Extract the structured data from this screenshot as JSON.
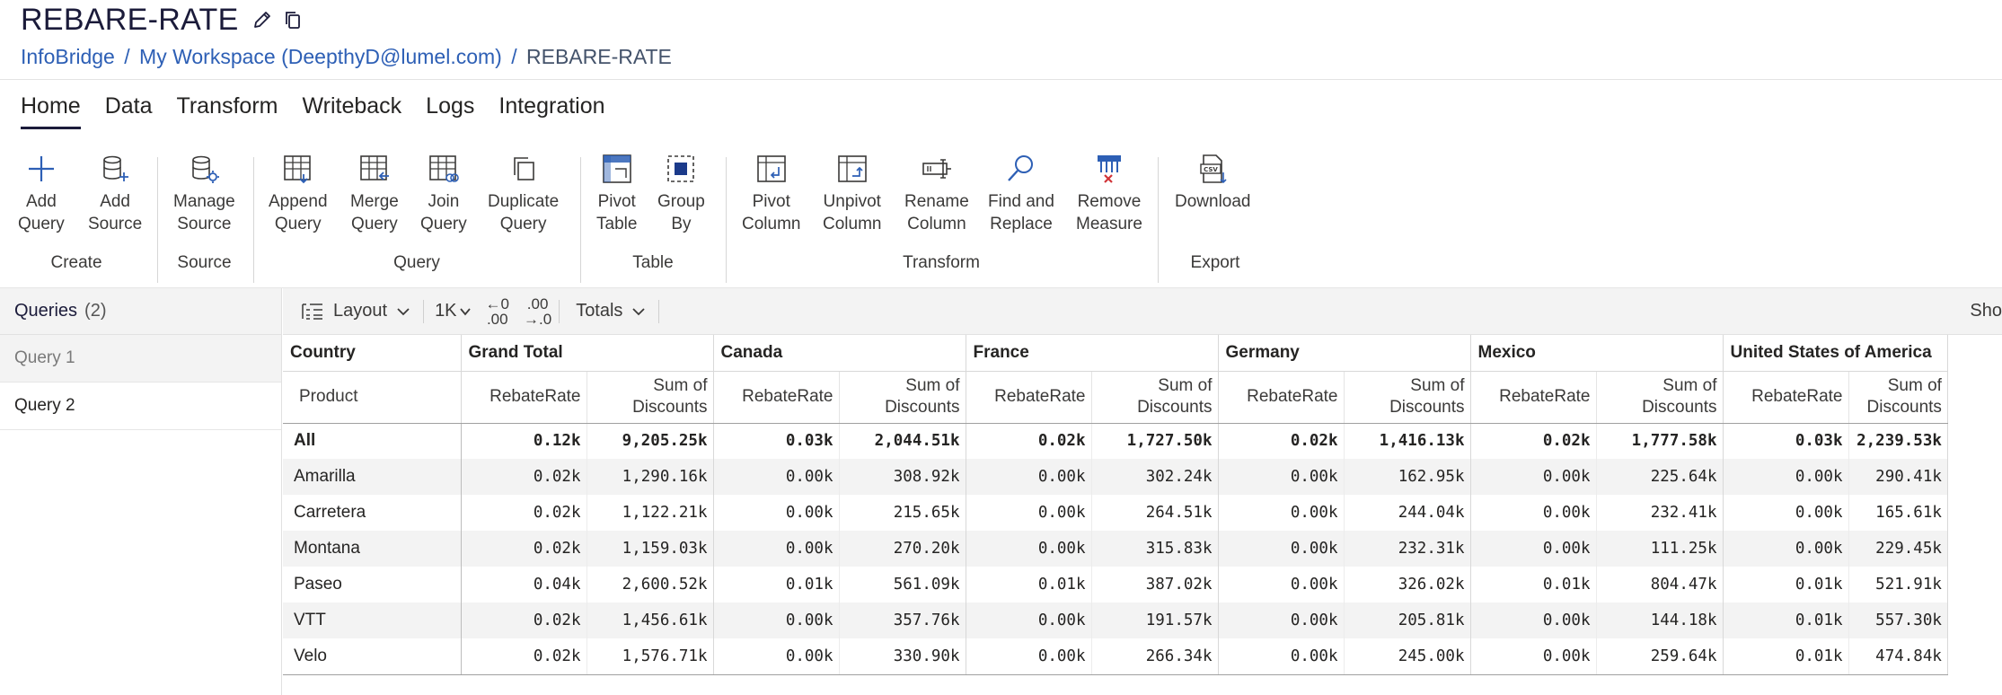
{
  "header": {
    "title": "REBARE-RATE",
    "breadcrumb": {
      "root": "InfoBridge",
      "workspace": "My Workspace (DeepthyD@lumel.com)",
      "current": "REBARE-RATE",
      "sep": "/"
    }
  },
  "tabs": [
    "Home",
    "Data",
    "Transform",
    "Writeback",
    "Logs",
    "Integration"
  ],
  "ribbon": {
    "groups": {
      "create": "Create",
      "source": "Source",
      "query": "Query",
      "table": "Table",
      "transform": "Transform",
      "export": "Export"
    },
    "buttons": {
      "add_query": [
        "Add",
        "Query"
      ],
      "add_source": [
        "Add",
        "Source"
      ],
      "manage_source": [
        "Manage",
        "Source"
      ],
      "append_query": [
        "Append",
        "Query"
      ],
      "merge_query": [
        "Merge",
        "Query"
      ],
      "join_query": [
        "Join",
        "Query"
      ],
      "duplicate_query": [
        "Duplicate",
        "Query"
      ],
      "pivot_table": [
        "Pivot",
        "Table"
      ],
      "group_by": [
        "Group",
        "By"
      ],
      "pivot_column": [
        "Pivot",
        "Column"
      ],
      "unpivot_column": [
        "Unpivot",
        "Column"
      ],
      "rename_column": [
        "Rename",
        "Column"
      ],
      "find_replace": [
        "Find and",
        "Replace"
      ],
      "remove_measure": [
        "Remove",
        "Measure"
      ],
      "download": [
        "Download"
      ]
    }
  },
  "queries": {
    "title": "Queries",
    "count": "(2)",
    "items": [
      "Query 1",
      "Query 2"
    ]
  },
  "toolbar": {
    "layout": "Layout",
    "rows": "1K",
    "dec_increase_top": "←0",
    "dec_increase_bottom": ".00",
    "dec_decrease_top": ".00",
    "dec_decrease_bottom": "→.0",
    "totals": "Totals",
    "show": "Sho"
  },
  "grid": {
    "corner_top": "Country",
    "corner_bottom": "Product",
    "column_groups": [
      "Grand Total",
      "Canada",
      "France",
      "Germany",
      "Mexico",
      "United States of America"
    ],
    "measures": [
      "RebateRate",
      "Sum of Discounts"
    ],
    "rows": [
      {
        "label": "All",
        "values": [
          "0.12k",
          "9,205.25k",
          "0.03k",
          "2,044.51k",
          "0.02k",
          "1,727.50k",
          "0.02k",
          "1,416.13k",
          "0.02k",
          "1,777.58k",
          "0.03k",
          "2,239.53k"
        ]
      },
      {
        "label": "Amarilla",
        "values": [
          "0.02k",
          "1,290.16k",
          "0.00k",
          "308.92k",
          "0.00k",
          "302.24k",
          "0.00k",
          "162.95k",
          "0.00k",
          "225.64k",
          "0.00k",
          "290.41k"
        ]
      },
      {
        "label": "Carretera",
        "values": [
          "0.02k",
          "1,122.21k",
          "0.00k",
          "215.65k",
          "0.00k",
          "264.51k",
          "0.00k",
          "244.04k",
          "0.00k",
          "232.41k",
          "0.00k",
          "165.61k"
        ]
      },
      {
        "label": "Montana",
        "values": [
          "0.02k",
          "1,159.03k",
          "0.00k",
          "270.20k",
          "0.00k",
          "315.83k",
          "0.00k",
          "232.31k",
          "0.00k",
          "111.25k",
          "0.00k",
          "229.45k"
        ]
      },
      {
        "label": "Paseo",
        "values": [
          "0.04k",
          "2,600.52k",
          "0.01k",
          "561.09k",
          "0.01k",
          "387.02k",
          "0.00k",
          "326.02k",
          "0.01k",
          "804.47k",
          "0.01k",
          "521.91k"
        ]
      },
      {
        "label": "VTT",
        "values": [
          "0.02k",
          "1,456.61k",
          "0.00k",
          "357.76k",
          "0.00k",
          "191.57k",
          "0.00k",
          "205.81k",
          "0.00k",
          "144.18k",
          "0.01k",
          "557.30k"
        ]
      },
      {
        "label": "Velo",
        "values": [
          "0.02k",
          "1,576.71k",
          "0.00k",
          "330.90k",
          "0.00k",
          "266.34k",
          "0.00k",
          "245.00k",
          "0.00k",
          "259.64k",
          "0.01k",
          "474.84k"
        ]
      }
    ]
  }
}
